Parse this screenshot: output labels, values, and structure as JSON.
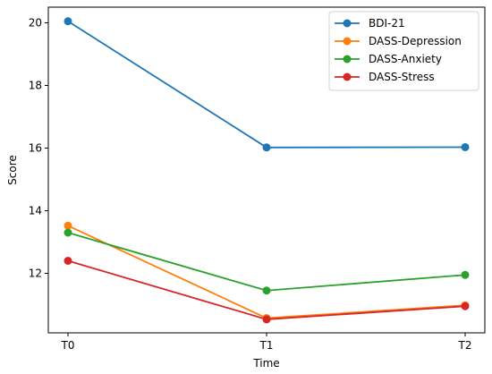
{
  "chart_data": {
    "type": "line",
    "title": "",
    "xlabel": "Time",
    "ylabel": "Score",
    "categories": [
      "T0",
      "T1",
      "T2"
    ],
    "ylim": [
      10.1,
      20.5
    ],
    "yticks": [
      12,
      14,
      16,
      18,
      20
    ],
    "grid": false,
    "legend": "top-right",
    "series": [
      {
        "name": "BDI-21",
        "color": "#1f77b4",
        "values": [
          20.05,
          16.02,
          16.03
        ]
      },
      {
        "name": "DASS-Depression",
        "color": "#ff7f0e",
        "values": [
          13.52,
          10.57,
          10.98
        ]
      },
      {
        "name": "DASS-Anxiety",
        "color": "#2ca02c",
        "values": [
          13.3,
          11.45,
          11.95
        ]
      },
      {
        "name": "DASS-Stress",
        "color": "#d62728",
        "values": [
          12.4,
          10.53,
          10.95
        ]
      }
    ]
  }
}
